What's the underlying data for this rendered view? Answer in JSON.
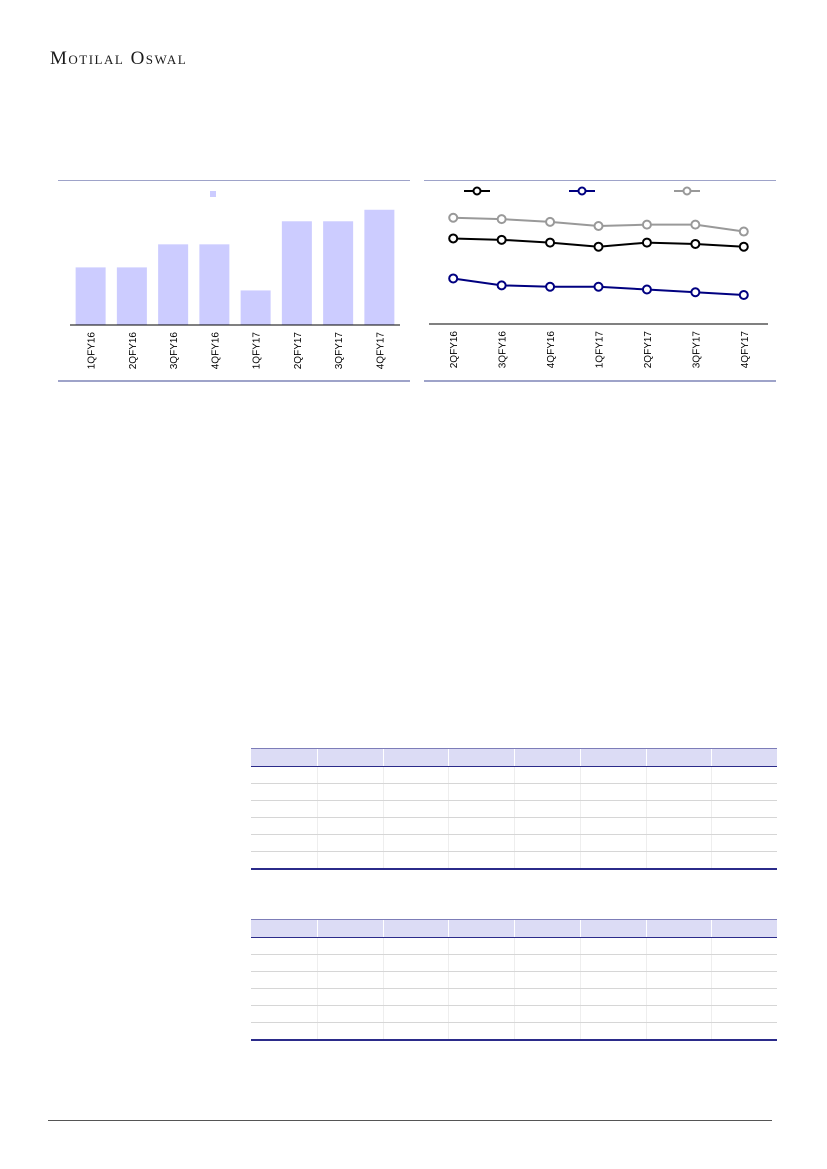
{
  "header": {
    "brand": "Motilal Oswal"
  },
  "charts": [
    {
      "chart_data": {
        "type": "bar",
        "categories": [
          "1QFY16",
          "2QFY16",
          "3QFY16",
          "4QFY16",
          "1QFY17",
          "2QFY17",
          "3QFY17",
          "4QFY17"
        ],
        "values": [
          5.0,
          5.0,
          7.0,
          7.0,
          3.0,
          9.0,
          9.0,
          10.0
        ],
        "ylim": [
          0,
          10.5
        ],
        "bar_color": "#ccccff",
        "legend_marker_color": "#ccccff"
      }
    },
    {
      "chart_data": {
        "type": "line",
        "categories": [
          "2QFY16",
          "3QFY16",
          "4QFY16",
          "1QFY17",
          "2QFY17",
          "3QFY17",
          "4QFY17"
        ],
        "ylim": [
          0,
          10
        ],
        "series": [
          {
            "color": "#000000",
            "values": [
              6.2,
              6.1,
              5.9,
              5.6,
              5.9,
              5.8,
              5.6
            ]
          },
          {
            "color": "#000080",
            "values": [
              3.3,
              2.8,
              2.7,
              2.7,
              2.5,
              2.3,
              2.1
            ]
          },
          {
            "color": "#999999",
            "values": [
              7.7,
              7.6,
              7.4,
              7.1,
              7.2,
              7.2,
              6.7
            ]
          }
        ]
      }
    }
  ],
  "tables": [
    {
      "rows": 6,
      "columns": 8
    },
    {
      "rows": 6,
      "columns": 8
    }
  ]
}
